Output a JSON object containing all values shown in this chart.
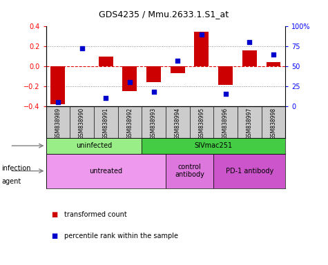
{
  "title": "GDS4235 / Mmu.2633.1.S1_at",
  "samples": [
    "GSM838989",
    "GSM838990",
    "GSM838991",
    "GSM838992",
    "GSM838993",
    "GSM838994",
    "GSM838995",
    "GSM838996",
    "GSM838997",
    "GSM838998"
  ],
  "bar_values": [
    -0.38,
    0.0,
    0.1,
    -0.25,
    -0.16,
    -0.07,
    0.35,
    -0.19,
    0.16,
    0.04
  ],
  "dot_values": [
    5,
    73,
    10,
    30,
    18,
    57,
    90,
    15,
    80,
    65
  ],
  "bar_color": "#cc0000",
  "dot_color": "#0000cc",
  "ylim": [
    -0.4,
    0.4
  ],
  "y2lim": [
    0,
    100
  ],
  "y_ticks": [
    -0.4,
    -0.2,
    0.0,
    0.2,
    0.4
  ],
  "y2_ticks": [
    0,
    25,
    50,
    75,
    100
  ],
  "y2_labels": [
    "0",
    "25",
    "50",
    "75",
    "100%"
  ],
  "grid_lines": [
    -0.2,
    0.2
  ],
  "zero_line_color": "#dd0000",
  "dotted_line_color": "#888888",
  "infection_labels": [
    {
      "text": "uninfected",
      "start": 0,
      "end": 4,
      "color": "#99ee88"
    },
    {
      "text": "SIVmac251",
      "start": 4,
      "end": 10,
      "color": "#44cc44"
    }
  ],
  "agent_labels": [
    {
      "text": "untreated",
      "start": 0,
      "end": 5,
      "color": "#ee99ee"
    },
    {
      "text": "control\nantibody",
      "start": 5,
      "end": 7,
      "color": "#dd77dd"
    },
    {
      "text": "PD-1 antibody",
      "start": 7,
      "end": 10,
      "color": "#cc55cc"
    }
  ],
  "bg_color": "#ffffff",
  "sample_box_color": "#cccccc",
  "legend_items": [
    {
      "label": "transformed count",
      "color": "#cc0000"
    },
    {
      "label": "percentile rank within the sample",
      "color": "#0000cc"
    }
  ]
}
